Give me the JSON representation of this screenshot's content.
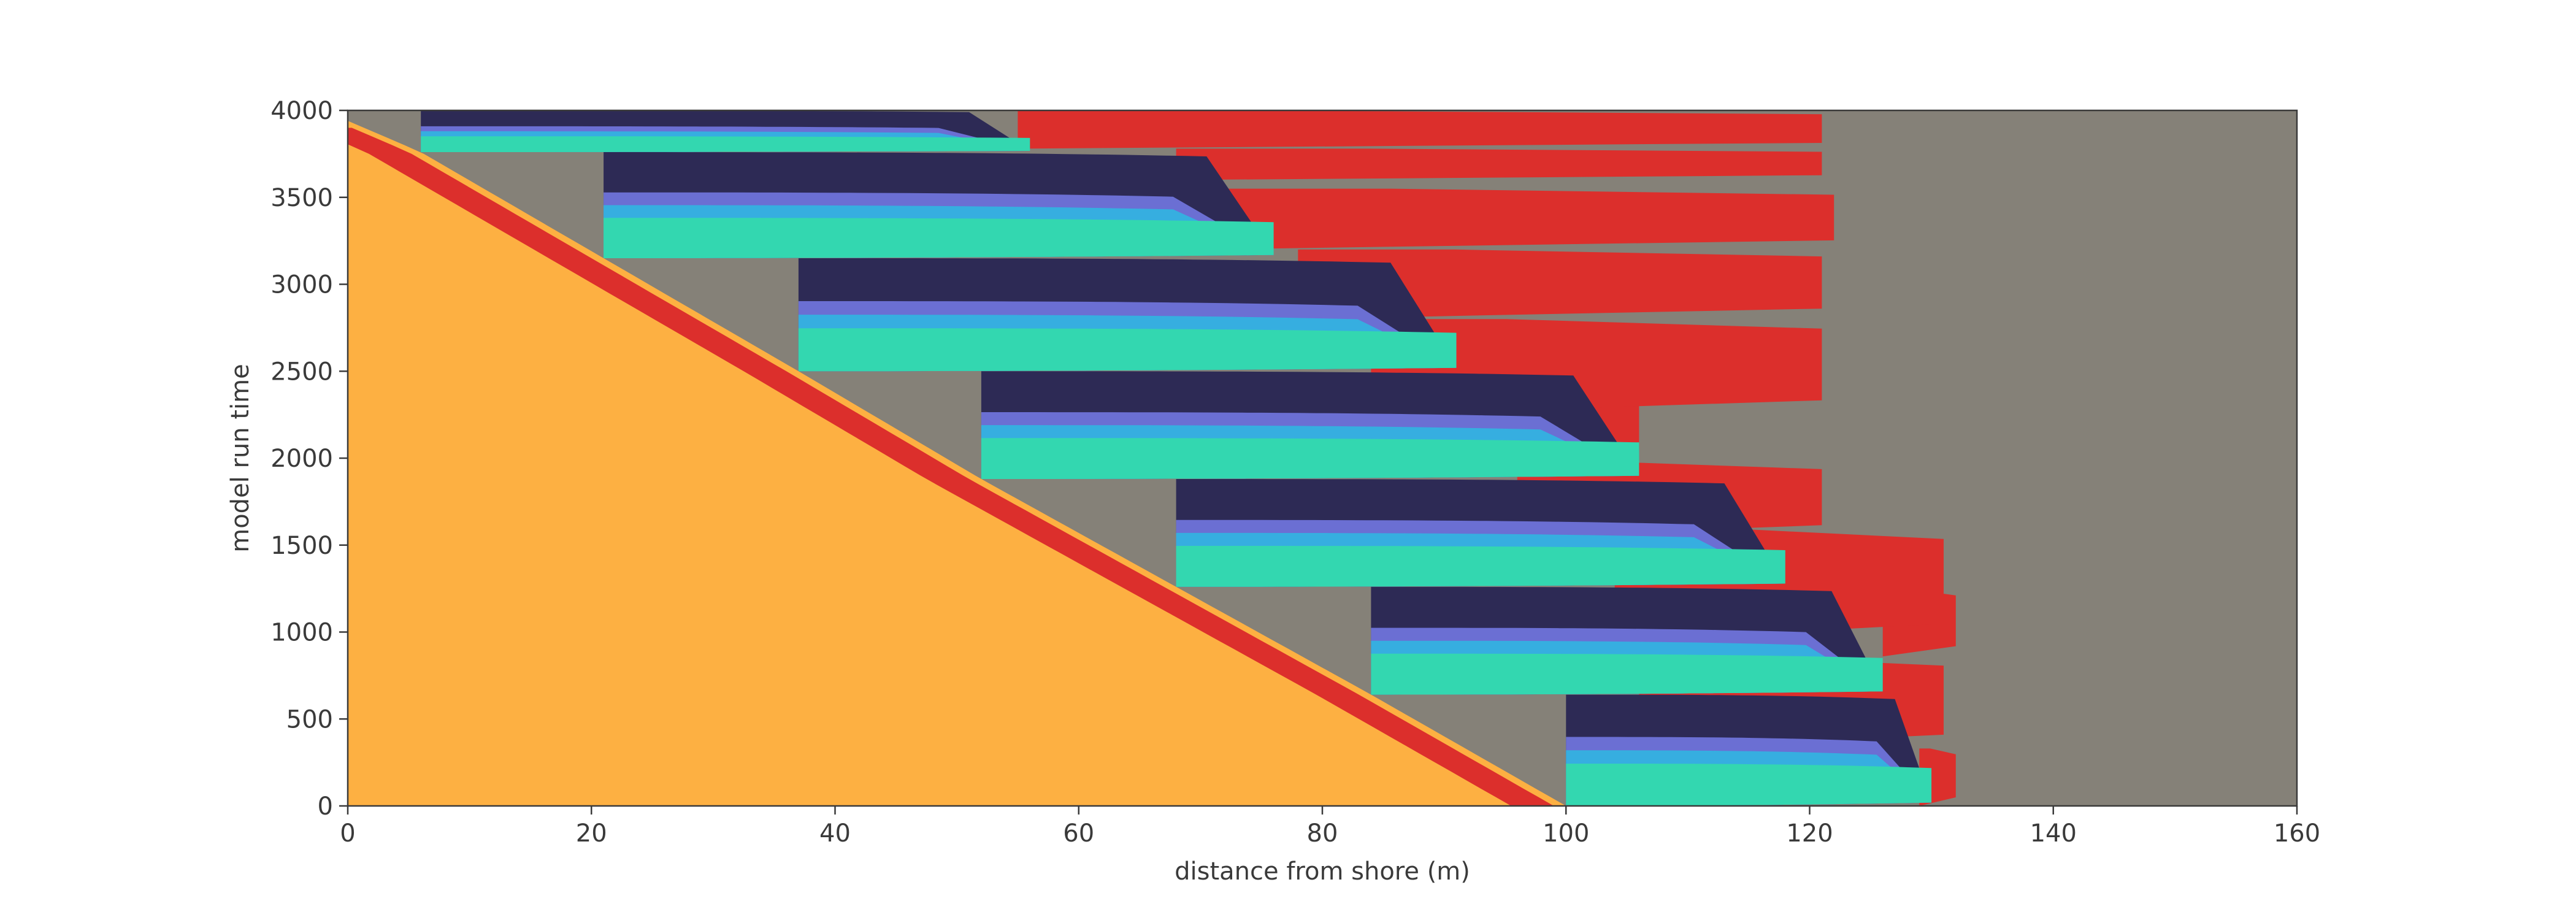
{
  "chart_data": {
    "type": "heatmap",
    "title": "",
    "xlabel": "distance from shore (m)",
    "ylabel": "model run time",
    "xlim": [
      0,
      160
    ],
    "ylim": [
      0,
      4000
    ],
    "xticks": [
      "0",
      "20",
      "40",
      "60",
      "80",
      "100",
      "120",
      "140",
      "160"
    ],
    "yticks": [
      "0",
      "500",
      "1000",
      "1500",
      "2000",
      "2500",
      "3000",
      "3500",
      "4000"
    ],
    "grid": false,
    "legend": "none",
    "colors": {
      "land": "#fdb042",
      "red": "#dc2f2c",
      "gray": "#858178",
      "teal": "#33d7b0",
      "navy": "#2d2a55",
      "violet": "#6b6fd3",
      "sky": "#36aee0"
    },
    "cycles": [
      {
        "t0": 0,
        "t1": 640,
        "toe": 100,
        "tip": 130
      },
      {
        "t0": 640,
        "t1": 1260,
        "toe": 84,
        "tip": 126
      },
      {
        "t0": 1260,
        "t1": 1880,
        "toe": 68,
        "tip": 118
      },
      {
        "t0": 1880,
        "t1": 2500,
        "toe": 52,
        "tip": 106
      },
      {
        "t0": 2500,
        "t1": 3150,
        "toe": 37,
        "tip": 91
      },
      {
        "t0": 3150,
        "t1": 3760,
        "toe": 21,
        "tip": 76
      },
      {
        "t0": 3760,
        "t1": 4000,
        "toe": 6,
        "tip": 56
      }
    ],
    "red_zones": [
      {
        "t0": 0,
        "t1": 330,
        "x0": 129,
        "x1": 132
      },
      {
        "t0": 330,
        "t1": 860,
        "x0": 106,
        "x1": 131
      },
      {
        "t0": 860,
        "t1": 1250,
        "x0": 126,
        "x1": 132
      },
      {
        "t0": 950,
        "t1": 1600,
        "x0": 104,
        "x1": 131
      },
      {
        "t0": 1550,
        "t1": 1980,
        "x0": 96,
        "x1": 121
      },
      {
        "t0": 1980,
        "t1": 2450,
        "x0": 88,
        "x1": 106
      },
      {
        "t0": 2250,
        "t1": 2800,
        "x0": 84,
        "x1": 121
      },
      {
        "t0": 2800,
        "t1": 3200,
        "x0": 78,
        "x1": 121
      },
      {
        "t0": 3200,
        "t1": 3550,
        "x0": 70,
        "x1": 122
      },
      {
        "t0": 3600,
        "t1": 3780,
        "x0": 68,
        "x1": 121
      },
      {
        "t0": 3780,
        "t1": 4000,
        "x0": 55,
        "x1": 121
      }
    ]
  }
}
